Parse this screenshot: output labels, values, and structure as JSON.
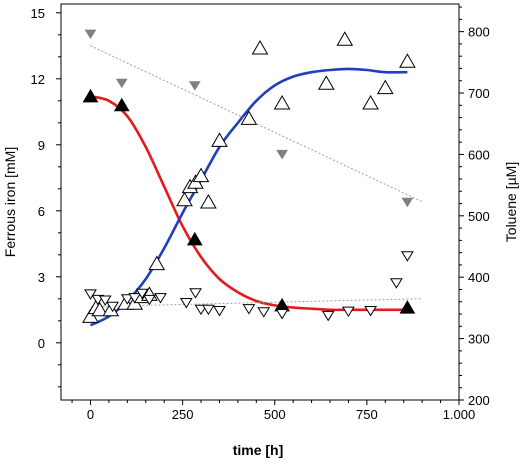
{
  "chart_data": {
    "type": "scatter",
    "xlabel": "time [h]",
    "ylabel_left": "Ferrous iron [mM]",
    "ylabel_right": "Toluene [µM]",
    "x_ticks": [
      0,
      250,
      500,
      750,
      1000
    ],
    "x_tick_labels": [
      "0",
      "250",
      "500",
      "750",
      "1.000"
    ],
    "xlim": [
      -80,
      1000
    ],
    "y_left_ticks": [
      0,
      3,
      6,
      9,
      12,
      15
    ],
    "y_left_tick_labels": [
      "0",
      "3",
      "6",
      "9",
      "12",
      "15"
    ],
    "ylim_left": [
      -2.6,
      15.4
    ],
    "y_right_ticks": [
      200,
      300,
      400,
      500,
      600,
      700,
      800
    ],
    "y_right_tick_labels": [
      "200",
      "300",
      "400",
      "500",
      "600",
      "700",
      "800"
    ],
    "ylim_right": [
      200,
      845
    ],
    "grid": false,
    "colors": {
      "red_fit": "#e41a1c",
      "blue_fit": "#1f3fbf",
      "gray_marker": "#808080",
      "trend_line": "#a0a0a0",
      "marker_black": "#000000"
    },
    "series": [
      {
        "axis": "left",
        "marker": "filled-triangle-up",
        "color": "#000000",
        "x": [
          0,
          85,
          283,
          520,
          860
        ],
        "y": [
          11.2,
          10.8,
          4.7,
          1.7,
          1.6
        ]
      },
      {
        "axis": "left",
        "marker": "open-triangle-up",
        "color": "#000000",
        "x": [
          0,
          15,
          25,
          55,
          95,
          120,
          140,
          160,
          180,
          255,
          270,
          285,
          300,
          320,
          350,
          430,
          460,
          520,
          640,
          690,
          760,
          800,
          860
        ],
        "y": [
          1.2,
          1.6,
          1.5,
          1.5,
          1.8,
          1.8,
          2.1,
          2.2,
          3.6,
          6.5,
          7.1,
          7.3,
          7.6,
          6.4,
          9.2,
          10.2,
          13.4,
          10.9,
          11.8,
          13.8,
          10.9,
          11.6,
          12.8
        ]
      },
      {
        "axis": "right",
        "marker": "filled-triangle-down",
        "color": "#808080",
        "x": [
          0,
          85,
          283,
          520,
          860
        ],
        "y": [
          796,
          716,
          712,
          600,
          522
        ]
      },
      {
        "axis": "right",
        "marker": "open-triangle-down",
        "color": "#000000",
        "x": [
          0,
          20,
          40,
          60,
          100,
          120,
          140,
          160,
          190,
          260,
          285,
          300,
          320,
          350,
          430,
          470,
          520,
          645,
          700,
          760,
          830,
          860
        ],
        "y": [
          372,
          363,
          362,
          352,
          364,
          366,
          373,
          363,
          366,
          358,
          374,
          347,
          347,
          345,
          348,
          343,
          340,
          337,
          344,
          345,
          390,
          434
        ]
      }
    ],
    "fits": [
      {
        "axis": "left",
        "color": "#e41a1c",
        "x": [
          0,
          50,
          100,
          150,
          200,
          250,
          300,
          350,
          400,
          450,
          500,
          550,
          600,
          650,
          700,
          750,
          800,
          860
        ],
        "y": [
          11.2,
          11.0,
          10.3,
          8.9,
          7.1,
          5.3,
          3.9,
          2.9,
          2.3,
          1.9,
          1.7,
          1.6,
          1.55,
          1.5,
          1.5,
          1.5,
          1.5,
          1.5
        ]
      },
      {
        "axis": "left",
        "color": "#1f3fbf",
        "x": [
          0,
          50,
          100,
          150,
          200,
          250,
          300,
          350,
          400,
          450,
          500,
          550,
          600,
          650,
          700,
          750,
          800,
          860
        ],
        "y": [
          0.8,
          1.2,
          1.9,
          2.9,
          4.3,
          5.9,
          7.4,
          8.9,
          10.0,
          11.0,
          11.7,
          12.1,
          12.3,
          12.4,
          12.45,
          12.4,
          12.3,
          12.3
        ]
      },
      {
        "axis": "right",
        "color": "#a0a0a0",
        "dashed": true,
        "x": [
          0,
          900
        ],
        "y": [
          777,
          523
        ]
      },
      {
        "axis": "right",
        "color": "#a0a0a0",
        "dashed": true,
        "x": [
          0,
          900
        ],
        "y": [
          352,
          365
        ]
      }
    ]
  }
}
